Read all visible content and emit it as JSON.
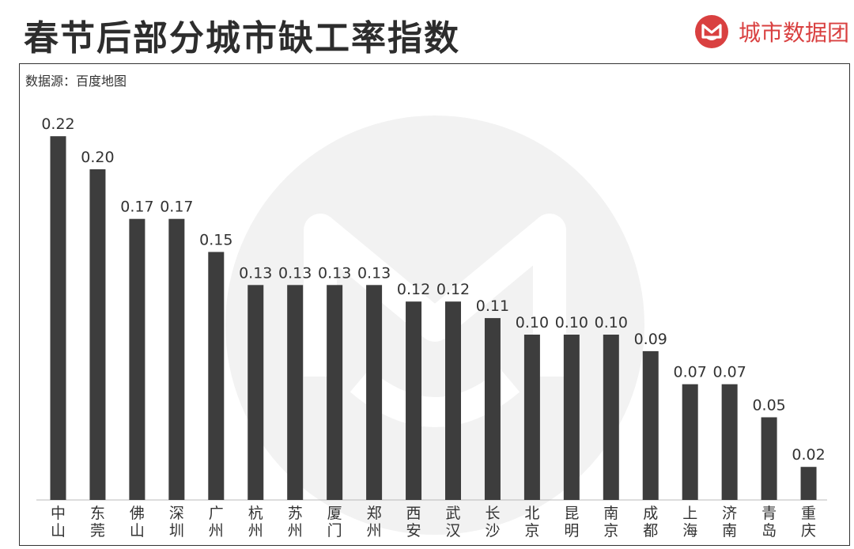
{
  "header": {
    "title": "春节后部分城市缺工率指数",
    "brand": "城市数据团",
    "source": "数据源：百度地图"
  },
  "colors": {
    "bar": "#3d3d3d",
    "brand": "#d94040",
    "watermark": "#f2f2f2"
  },
  "icons": {
    "brand_logo": "fox-logo-icon",
    "watermark": "fox-watermark-icon"
  },
  "chart_data": {
    "type": "bar",
    "title": "春节后部分城市缺工率指数",
    "xlabel": "",
    "ylabel": "",
    "ylim": [
      0,
      0.22
    ],
    "grid": false,
    "categories": [
      "中山",
      "东莞",
      "佛山",
      "深圳",
      "广州",
      "杭州",
      "苏州",
      "厦门",
      "郑州",
      "西安",
      "武汉",
      "长沙",
      "北京",
      "昆明",
      "南京",
      "成都",
      "上海",
      "济南",
      "青岛",
      "重庆"
    ],
    "values": [
      0.22,
      0.2,
      0.17,
      0.17,
      0.15,
      0.13,
      0.13,
      0.13,
      0.13,
      0.12,
      0.12,
      0.11,
      0.1,
      0.1,
      0.1,
      0.09,
      0.07,
      0.07,
      0.05,
      0.02
    ],
    "labels": [
      "0.22",
      "0.20",
      "0.17",
      "0.17",
      "0.15",
      "0.13",
      "0.13",
      "0.13",
      "0.13",
      "0.12",
      "0.12",
      "0.11",
      "0.10",
      "0.10",
      "0.10",
      "0.09",
      "0.07",
      "0.07",
      "0.05",
      "0.02"
    ]
  }
}
